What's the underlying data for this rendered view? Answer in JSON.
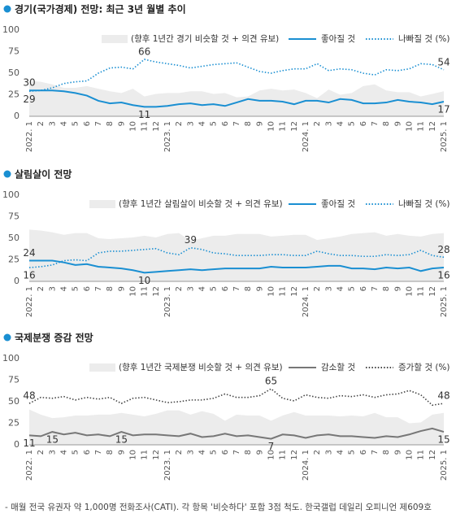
{
  "note": "- 매월 전국 유권자 약 1,000명 전화조사(CATI). 각 항목 '비슷하다' 포함 3점 척도. 한국갤럽 데일리 오피니언 제609호",
  "chart_data": [
    {
      "type": "line",
      "title": "경기(국가경제) 전망:  최근 3년 월별 추이",
      "categories": [
        "2022. 1",
        "2",
        "3",
        "4",
        "5",
        "6",
        "7",
        "8",
        "9",
        "10",
        "11",
        "12",
        "2023. 1",
        "2",
        "3",
        "4",
        "5",
        "6",
        "7",
        "8",
        "9",
        "10",
        "11",
        "12",
        "2024. 1",
        "2",
        "3",
        "4",
        "5",
        "6",
        "7",
        "8",
        "9",
        "10",
        "11",
        "12",
        "2025. 1"
      ],
      "ylim": [
        0,
        100
      ],
      "yticks": [
        0,
        25,
        50,
        75,
        100
      ],
      "series": [
        {
          "name": "(향후 1년간 경기 비슷할 것 + 의견 유보)",
          "type": "area",
          "color": "#ececec",
          "values": [
            41,
            40,
            37,
            33,
            33,
            35,
            32,
            29,
            27,
            32,
            23,
            26,
            27,
            27,
            29,
            29,
            26,
            27,
            22,
            23,
            30,
            32,
            30,
            31,
            27,
            21,
            31,
            25,
            27,
            35,
            37,
            30,
            28,
            28,
            23,
            26,
            29
          ]
        },
        {
          "name": "좋아질 것",
          "type": "line",
          "style": "solid",
          "color": "#1a8fd2",
          "label_color": "#1a8fd2",
          "values": [
            30,
            30,
            30,
            29,
            27,
            24,
            18,
            15,
            16,
            13,
            11,
            11,
            12,
            14,
            15,
            13,
            14,
            12,
            16,
            20,
            18,
            18,
            17,
            14,
            18,
            18,
            16,
            20,
            19,
            15,
            15,
            16,
            19,
            17,
            16,
            14,
            17
          ],
          "value_labels": [
            30,
            null,
            null,
            null,
            null,
            null,
            null,
            null,
            null,
            null,
            11,
            null,
            null,
            null,
            null,
            null,
            null,
            null,
            null,
            null,
            null,
            null,
            null,
            null,
            null,
            null,
            null,
            null,
            null,
            null,
            null,
            null,
            null,
            null,
            null,
            null,
            17
          ]
        },
        {
          "name": "나빠질 것 (%)",
          "type": "line",
          "style": "dotted",
          "color": "#1a8fd2",
          "label_color": "#333333",
          "values": [
            29,
            30,
            33,
            38,
            40,
            41,
            50,
            56,
            57,
            55,
            66,
            63,
            61,
            59,
            56,
            58,
            60,
            61,
            62,
            57,
            52,
            50,
            53,
            55,
            55,
            61,
            53,
            55,
            54,
            50,
            48,
            54,
            53,
            55,
            61,
            60,
            54
          ],
          "value_labels": [
            29,
            null,
            null,
            null,
            null,
            null,
            null,
            null,
            null,
            null,
            66,
            null,
            null,
            null,
            null,
            null,
            null,
            null,
            null,
            null,
            null,
            null,
            null,
            null,
            null,
            null,
            null,
            null,
            null,
            null,
            null,
            null,
            null,
            null,
            null,
            null,
            54
          ]
        }
      ]
    },
    {
      "type": "line",
      "title": "살림살이 전망",
      "categories": [
        "2022. 1",
        "2",
        "3",
        "4",
        "5",
        "6",
        "7",
        "8",
        "9",
        "10",
        "11",
        "12",
        "2023. 1",
        "2",
        "3",
        "4",
        "5",
        "6",
        "7",
        "8",
        "9",
        "10",
        "11",
        "12",
        "2024. 1",
        "2",
        "3",
        "4",
        "5",
        "6",
        "7",
        "8",
        "9",
        "10",
        "11",
        "12",
        "2025. 1"
      ],
      "ylim": [
        0,
        100
      ],
      "yticks": [
        0,
        25,
        50,
        75,
        100
      ],
      "series": [
        {
          "name": "(향후 1년간 살림살이 비슷할 것 + 의견 유보)",
          "type": "area",
          "color": "#ececec",
          "values": [
            60,
            59,
            57,
            54,
            56,
            56,
            50,
            49,
            50,
            51,
            53,
            51,
            55,
            56,
            47,
            50,
            53,
            53,
            55,
            55,
            55,
            52,
            53,
            54,
            54,
            48,
            50,
            52,
            55,
            56,
            57,
            53,
            55,
            53,
            52,
            55,
            56
          ]
        },
        {
          "name": "좋아질 것",
          "type": "line",
          "style": "solid",
          "color": "#1a8fd2",
          "label_color": "#1a8fd2",
          "values": [
            24,
            24,
            24,
            22,
            19,
            20,
            17,
            16,
            15,
            13,
            10,
            11,
            12,
            13,
            14,
            13,
            14,
            15,
            15,
            15,
            15,
            17,
            16,
            16,
            16,
            17,
            18,
            18,
            15,
            15,
            14,
            16,
            15,
            16,
            12,
            15,
            16
          ],
          "value_labels": [
            24,
            null,
            null,
            null,
            null,
            null,
            null,
            null,
            null,
            null,
            10,
            null,
            null,
            null,
            null,
            null,
            null,
            null,
            null,
            null,
            null,
            null,
            null,
            null,
            null,
            null,
            null,
            null,
            null,
            null,
            null,
            null,
            null,
            null,
            null,
            null,
            16
          ]
        },
        {
          "name": "나빠질 것 (%)",
          "type": "line",
          "style": "dotted",
          "color": "#1a8fd2",
          "label_color": "#333333",
          "values": [
            16,
            17,
            19,
            24,
            25,
            24,
            33,
            35,
            35,
            36,
            37,
            38,
            33,
            31,
            39,
            37,
            33,
            32,
            30,
            30,
            30,
            31,
            31,
            30,
            30,
            35,
            32,
            30,
            30,
            29,
            29,
            31,
            30,
            31,
            36,
            30,
            28
          ],
          "value_labels": [
            16,
            null,
            null,
            null,
            null,
            null,
            null,
            null,
            null,
            null,
            null,
            null,
            null,
            null,
            39,
            null,
            null,
            null,
            null,
            null,
            null,
            null,
            null,
            null,
            null,
            null,
            null,
            null,
            null,
            null,
            null,
            null,
            null,
            null,
            null,
            null,
            28
          ]
        }
      ]
    },
    {
      "type": "line",
      "title": "국제분쟁 증감 전망",
      "categories": [
        "2022. 1",
        "2",
        "3",
        "4",
        "5",
        "6",
        "7",
        "8",
        "9",
        "10",
        "11",
        "12",
        "2023. 1",
        "2",
        "3",
        "4",
        "5",
        "6",
        "7",
        "8",
        "9",
        "10",
        "11",
        "12",
        "2024. 1",
        "2",
        "3",
        "4",
        "5",
        "6",
        "7",
        "8",
        "9",
        "10",
        "11",
        "12",
        "2025. 1"
      ],
      "ylim": [
        0,
        100
      ],
      "yticks": [
        0,
        25,
        50,
        75,
        100
      ],
      "series": [
        {
          "name": "(향후 1년간 국제분쟁 비슷할 것 + 의견 유보)",
          "type": "area",
          "color": "#ececec",
          "values": [
            41,
            35,
            31,
            32,
            34,
            34,
            35,
            35,
            37,
            35,
            33,
            36,
            40,
            40,
            35,
            39,
            36,
            28,
            35,
            34,
            34,
            28,
            34,
            38,
            34,
            34,
            34,
            33,
            34,
            33,
            37,
            32,
            32,
            25,
            26,
            35,
            37
          ]
        },
        {
          "name": "감소할 것",
          "type": "line",
          "style": "solid",
          "color": "#777777",
          "label_color": "#333333",
          "values": [
            11,
            10,
            15,
            12,
            14,
            11,
            12,
            10,
            15,
            11,
            12,
            12,
            11,
            10,
            13,
            9,
            10,
            13,
            10,
            11,
            9,
            7,
            12,
            11,
            8,
            11,
            12,
            10,
            10,
            9,
            8,
            10,
            9,
            12,
            16,
            19,
            15
          ],
          "value_labels": [
            11,
            null,
            15,
            null,
            null,
            null,
            null,
            null,
            15,
            null,
            null,
            null,
            null,
            null,
            null,
            null,
            null,
            null,
            null,
            null,
            null,
            7,
            null,
            null,
            null,
            null,
            null,
            null,
            null,
            null,
            null,
            null,
            null,
            null,
            null,
            null,
            15
          ]
        },
        {
          "name": "증가할 것 (%)",
          "type": "line",
          "style": "dotted",
          "color": "#444444",
          "label_color": "#333333",
          "values": [
            48,
            55,
            54,
            56,
            52,
            55,
            53,
            55,
            48,
            54,
            55,
            52,
            49,
            50,
            52,
            52,
            54,
            59,
            55,
            55,
            57,
            65,
            54,
            51,
            58,
            55,
            54,
            57,
            56,
            58,
            55,
            58,
            59,
            63,
            58,
            46,
            48
          ],
          "value_labels": [
            48,
            null,
            null,
            null,
            null,
            null,
            null,
            null,
            null,
            null,
            null,
            null,
            null,
            null,
            null,
            null,
            null,
            null,
            null,
            null,
            null,
            65,
            null,
            null,
            null,
            null,
            null,
            null,
            null,
            null,
            null,
            null,
            null,
            null,
            null,
            null,
            48
          ]
        }
      ]
    }
  ]
}
